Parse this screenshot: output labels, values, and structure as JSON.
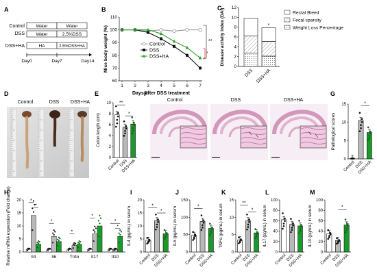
{
  "panels": {
    "A": {
      "letter": "A",
      "groups": [
        "Control",
        "DSS",
        "DSS+HA"
      ],
      "seg_labels": [
        [
          "Water",
          "Water"
        ],
        [
          "Water",
          "2.5%DSS"
        ],
        [
          "HA",
          "2.5%DSS+HA"
        ]
      ],
      "days": [
        "Day0",
        "Day7",
        "Day14"
      ]
    },
    "B": {
      "letter": "B",
      "chart_data": {
        "type": "line",
        "x": [
          1,
          2,
          3,
          4,
          5,
          6,
          7
        ],
        "xlim": [
          1,
          7
        ],
        "ylim": [
          60,
          110
        ],
        "yticks": [
          60,
          70,
          80,
          90,
          100,
          110
        ],
        "xlabel": "Days after DSS treatment",
        "ylabel": "Mice body weight (%)",
        "series": [
          {
            "name": "Control",
            "values": [
              100,
              100,
              99,
              100,
              99,
              100,
              100
            ],
            "color": "#999999",
            "marker": "open-circle"
          },
          {
            "name": "DSS",
            "values": [
              100,
              100,
              98,
              93,
              87,
              80,
              70
            ],
            "color": "#111111",
            "marker": "square"
          },
          {
            "name": "DSS+HA",
            "values": [
              100,
              100,
              100,
              97,
              91,
              86,
              78
            ],
            "color": "#2ca02c",
            "marker": "triangle"
          }
        ],
        "annotations": [
          "**",
          "*"
        ]
      }
    },
    "C": {
      "letter": "C",
      "chart_data": {
        "type": "bar",
        "stacked": true,
        "categories": [
          "DSS",
          "DSS+HA"
        ],
        "ylim": [
          0,
          12
        ],
        "yticks": [
          0,
          2,
          4,
          6,
          8,
          10,
          12
        ],
        "ylabel": "Disease activity index (DAI)",
        "series": [
          {
            "name": "Weight Loss Percentage",
            "values": [
              2.7,
              2.1
            ]
          },
          {
            "name": "Fecal sparsity",
            "values": [
              3.5,
              3.0
            ]
          },
          {
            "name": "Rectal Bleed",
            "values": [
              3.6,
              2.8
            ]
          }
        ],
        "annotations": [
          "*"
        ]
      }
    },
    "D": {
      "letter": "D",
      "labels": [
        "Control",
        "DSS",
        "DSS+HA"
      ]
    },
    "E": {
      "letter": "E",
      "chart_data": {
        "type": "bar",
        "categories": [
          "Control",
          "DSS",
          "DSS+HA"
        ],
        "values": [
          7.8,
          5.5,
          6.1
        ],
        "ylim": [
          0,
          10
        ],
        "yticks": [
          0,
          2,
          4,
          6,
          8,
          10
        ],
        "ylabel": "Colon length (cm)",
        "annotations": [
          "**",
          "*"
        ]
      }
    },
    "F": {
      "letter": "F",
      "labels": [
        "Control",
        "DSS",
        "DSS+HA"
      ]
    },
    "G": {
      "letter": "G",
      "chart_data": {
        "type": "bar",
        "categories": [
          "Control",
          "DSS",
          "DSS+HA"
        ],
        "values": [
          0.1,
          10.5,
          7.2
        ],
        "ylim": [
          0,
          15
        ],
        "yticks": [
          0,
          5,
          10,
          15
        ],
        "ylabel": "Pathological scores",
        "annotations": [
          "*"
        ]
      }
    },
    "H": {
      "letter": "H",
      "chart_data": {
        "type": "bar",
        "categories": [
          "Il4",
          "Il6",
          "Tnfα",
          "Il17",
          "Il10"
        ],
        "ylim": [
          0,
          20
        ],
        "yticks": [
          0,
          5,
          10,
          15,
          20
        ],
        "ylabel": "Relative mRNA expression (Fold change)",
        "series": [
          {
            "name": "Control",
            "values": [
              1,
              1,
              1,
              1,
              1
            ]
          },
          {
            "name": "DSS",
            "values": [
              14,
              6,
              2.5,
              7,
              1
            ]
          },
          {
            "name": "DSS+HA",
            "values": [
              3,
              4,
              3,
              10,
              6
            ]
          }
        ],
        "annotations": [
          "*",
          "*",
          "*",
          "*",
          "*",
          "*",
          "*"
        ]
      }
    },
    "I": {
      "letter": "I",
      "chart_data": {
        "type": "bar",
        "categories": [
          "Control",
          "DSS",
          "DSS+HA"
        ],
        "values": [
          4.5,
          12,
          7
        ],
        "ylim": [
          0,
          20
        ],
        "yticks": [
          0,
          5,
          10,
          15,
          20
        ],
        "ylabel": "IL4 (pg/mL) in serum",
        "annotations": [
          "*",
          "*"
        ]
      }
    },
    "J": {
      "letter": "J",
      "chart_data": {
        "type": "bar",
        "categories": [
          "Control",
          "DSS",
          "DSS+HA"
        ],
        "values": [
          48,
          88,
          68
        ],
        "ylim": [
          0,
          150
        ],
        "yticks": [
          0,
          50,
          100,
          150
        ],
        "ylabel": "IL6 (pg/mL) in serum",
        "annotations": [
          "*"
        ]
      }
    },
    "K": {
      "letter": "K",
      "chart_data": {
        "type": "bar",
        "categories": [
          "Control",
          "DSS",
          "DSS+HA"
        ],
        "values": [
          3.5,
          9,
          5.5
        ],
        "ylim": [
          0,
          15
        ],
        "yticks": [
          0,
          5,
          10,
          15
        ],
        "ylabel": "TNFα (pg/mL) in serum",
        "annotations": [
          "**",
          "*"
        ]
      }
    },
    "L": {
      "letter": "L",
      "chart_data": {
        "type": "bar",
        "categories": [
          "Control",
          "DSS",
          "DSS+HA"
        ],
        "values": [
          62,
          53,
          50
        ],
        "ylim": [
          0,
          100
        ],
        "yticks": [
          0,
          20,
          40,
          60,
          80,
          100
        ],
        "ylabel": "IL17 (pg/mL) in serum"
      }
    },
    "M": {
      "letter": "M",
      "chart_data": {
        "type": "bar",
        "categories": [
          "Control",
          "DSS",
          "DSS+HA"
        ],
        "values": [
          35,
          22,
          52
        ],
        "ylim": [
          0,
          100
        ],
        "yticks": [
          0,
          20,
          40,
          60,
          80,
          100
        ],
        "ylabel": "IL10 (pg/mL) in serum",
        "annotations": [
          "*"
        ]
      }
    }
  }
}
